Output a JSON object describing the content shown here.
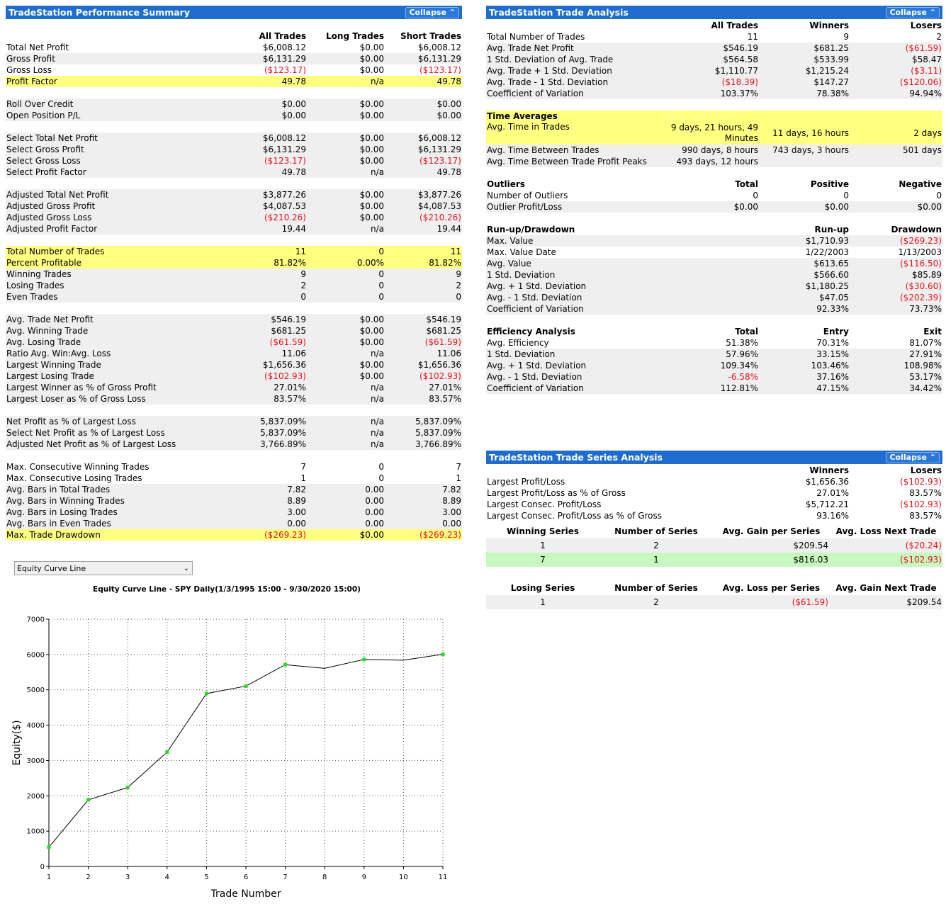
{
  "colors": {
    "title_bar": "#1f6ccf",
    "highlight_yellow": "#ffff80",
    "highlight_green": "#c8f7c0",
    "negative": "#e0141e",
    "alt_row": "#efefef",
    "point": "#22dd22"
  },
  "perf": {
    "title": "TradeStation Performance Summary",
    "collapse": "Collapse ⌃",
    "headers": [
      "",
      "All Trades",
      "Long Trades",
      "Short Trades"
    ],
    "rows": [
      {
        "cells": [
          "Total Net Profit",
          "$6,008.12",
          "$0.00",
          "$6,008.12"
        ]
      },
      {
        "cells": [
          "Gross Profit",
          "$6,131.29",
          "$0.00",
          "$6,131.29"
        ],
        "alt": true
      },
      {
        "cells": [
          "Gross Loss",
          "($123.17)",
          "$0.00",
          "($123.17)"
        ]
      },
      {
        "cells": [
          "Profit Factor",
          "49.78",
          "n/a",
          "49.78"
        ],
        "hl": "yl"
      },
      {
        "gap": true
      },
      {
        "cells": [
          "Roll Over Credit",
          "$0.00",
          "$0.00",
          "$0.00"
        ],
        "alt": true
      },
      {
        "cells": [
          "Open Position P/L",
          "$0.00",
          "$0.00",
          "$0.00"
        ],
        "alt": true
      },
      {
        "gap": true,
        "alt": true
      },
      {
        "cells": [
          "Select Total Net Profit",
          "$6,008.12",
          "$0.00",
          "$6,008.12"
        ],
        "alt": true
      },
      {
        "cells": [
          "Select Gross Profit",
          "$6,131.29",
          "$0.00",
          "$6,131.29"
        ],
        "alt": true
      },
      {
        "cells": [
          "Select Gross Loss",
          "($123.17)",
          "$0.00",
          "($123.17)"
        ],
        "alt": true
      },
      {
        "cells": [
          "Select Profit Factor",
          "49.78",
          "n/a",
          "49.78"
        ],
        "alt": true
      },
      {
        "gap": true,
        "alt": true
      },
      {
        "cells": [
          "Adjusted Total Net Profit",
          "$3,877.26",
          "$0.00",
          "$3,877.26"
        ],
        "alt": true
      },
      {
        "cells": [
          "Adjusted Gross Profit",
          "$4,087.53",
          "$0.00",
          "$4,087.53"
        ],
        "alt": true
      },
      {
        "cells": [
          "Adjusted Gross Loss",
          "($210.26)",
          "$0.00",
          "($210.26)"
        ],
        "alt": true
      },
      {
        "cells": [
          "Adjusted Profit Factor",
          "19.44",
          "n/a",
          "19.44"
        ],
        "alt": true
      },
      {
        "gap": true
      },
      {
        "cells": [
          "Total Number of Trades",
          "11",
          "0",
          "11"
        ],
        "hl": "yl"
      },
      {
        "cells": [
          "Percent Profitable",
          "81.82%",
          "0.00%",
          "81.82%"
        ],
        "hl": "yl"
      },
      {
        "cells": [
          "Winning Trades",
          "9",
          "0",
          "9"
        ],
        "alt": true
      },
      {
        "cells": [
          "Losing Trades",
          "2",
          "0",
          "2"
        ],
        "alt": true
      },
      {
        "cells": [
          "Even Trades",
          "0",
          "0",
          "0"
        ],
        "alt": true
      },
      {
        "gap": true
      },
      {
        "cells": [
          "Avg. Trade Net Profit",
          "$546.19",
          "$0.00",
          "$546.19"
        ],
        "alt": true
      },
      {
        "cells": [
          "Avg. Winning Trade",
          "$681.25",
          "$0.00",
          "$681.25"
        ],
        "alt": true
      },
      {
        "cells": [
          "Avg. Losing Trade",
          "($61.59)",
          "$0.00",
          "($61.59)"
        ],
        "alt": true
      },
      {
        "cells": [
          "Ratio Avg. Win:Avg. Loss",
          "11.06",
          "n/a",
          "11.06"
        ],
        "alt": true
      },
      {
        "cells": [
          "Largest Winning Trade",
          "$1,656.36",
          "$0.00",
          "$1,656.36"
        ],
        "alt": true
      },
      {
        "cells": [
          "Largest Losing Trade",
          "($102.93)",
          "$0.00",
          "($102.93)"
        ],
        "alt": true
      },
      {
        "cells": [
          "Largest Winner as % of Gross Profit",
          "27.01%",
          "n/a",
          "27.01%"
        ],
        "alt": true
      },
      {
        "cells": [
          "Largest Loser as % of Gross Loss",
          "83.57%",
          "n/a",
          "83.57%"
        ],
        "alt": true
      },
      {
        "gap": true
      },
      {
        "cells": [
          "Net Profit as % of Largest Loss",
          "5,837.09%",
          "n/a",
          "5,837.09%"
        ],
        "alt": true
      },
      {
        "cells": [
          "Select Net Profit as % of Largest Loss",
          "5,837.09%",
          "n/a",
          "5,837.09%"
        ],
        "alt": true
      },
      {
        "cells": [
          "Adjusted Net Profit as % of Largest Loss",
          "3,766.89%",
          "n/a",
          "3,766.89%"
        ],
        "alt": true
      },
      {
        "gap": true
      },
      {
        "cells": [
          "Max. Consecutive Winning Trades",
          "7",
          "0",
          "7"
        ]
      },
      {
        "cells": [
          "Max. Consecutive Losing Trades",
          "1",
          "0",
          "1"
        ]
      },
      {
        "cells": [
          "Avg. Bars in Total Trades",
          "7.82",
          "0.00",
          "7.82"
        ],
        "alt": true
      },
      {
        "cells": [
          "Avg. Bars in Winning Trades",
          "8.89",
          "0.00",
          "8.89"
        ],
        "alt": true
      },
      {
        "cells": [
          "Avg. Bars in Losing Trades",
          "3.00",
          "0.00",
          "3.00"
        ],
        "alt": true
      },
      {
        "cells": [
          "Avg. Bars in Even Trades",
          "0.00",
          "0.00",
          "0.00"
        ],
        "alt": true
      },
      {
        "cells": [
          "Max. Trade Drawdown",
          "($269.23)",
          "$0.00",
          "($269.23)"
        ],
        "hl": "yl"
      }
    ]
  },
  "analysis": {
    "title": "TradeStation Trade Analysis",
    "collapse": "Collapse ⌃",
    "rows": [
      {
        "cells": [
          "",
          "All Trades",
          "Winners",
          "Losers"
        ],
        "head": true
      },
      {
        "cells": [
          "Total Number of Trades",
          "11",
          "9",
          "2"
        ]
      },
      {
        "cells": [
          "Avg. Trade Net Profit",
          "$546.19",
          "$681.25",
          "($61.59)"
        ],
        "alt": true
      },
      {
        "cells": [
          "1 Std. Deviation of Avg. Trade",
          "$564.58",
          "$533.99",
          "$58.47"
        ],
        "alt": true
      },
      {
        "cells": [
          "Avg. Trade + 1 Std. Deviation",
          "$1,110.77",
          "$1,215.24",
          "($3.11)"
        ],
        "alt": true
      },
      {
        "cells": [
          "Avg. Trade - 1 Std. Deviation",
          "($18.39)",
          "$147.27",
          "($120.06)"
        ],
        "alt": true
      },
      {
        "cells": [
          "Coefficient of Variation",
          "103.37%",
          "78.38%",
          "94.94%"
        ],
        "alt": true
      },
      {
        "gap": true
      },
      {
        "cells": [
          "Time Averages",
          "",
          "",
          ""
        ],
        "hl": "yl",
        "boldlabel": true
      },
      {
        "cells": [
          "Avg. Time in Trades",
          "9 days, 21 hours, 49 Minutes",
          "11 days, 16 hours",
          "2 days"
        ],
        "hl": "yl",
        "tall": true
      },
      {
        "cells": [
          "Avg. Time Between Trades",
          "990 days, 8 hours",
          "743 days, 3 hours",
          "501 days"
        ],
        "alt": true
      },
      {
        "cells": [
          "Avg. Time Between Trade Profit Peaks",
          "493 days, 12 hours",
          "",
          ""
        ],
        "alt": true
      },
      {
        "gap": true
      },
      {
        "cells": [
          "Outliers",
          "Total",
          "Positive",
          "Negative"
        ],
        "head": true
      },
      {
        "cells": [
          "Number of Outliers",
          "0",
          "0",
          "0"
        ]
      },
      {
        "cells": [
          "Outlier Profit/Loss",
          "$0.00",
          "$0.00",
          "$0.00"
        ],
        "alt": true
      },
      {
        "gap": true
      },
      {
        "cells": [
          "Run-up/Drawdown",
          "",
          "Run-up",
          "Drawdown"
        ],
        "head": true
      },
      {
        "cells": [
          "Max. Value",
          "",
          "$1,710.93",
          "($269.23)"
        ],
        "alt": true
      },
      {
        "cells": [
          "Max. Value Date",
          "",
          "1/22/2003",
          "1/13/2003"
        ]
      },
      {
        "cells": [
          "Avg. Value",
          "",
          "$613.65",
          "($116.50)"
        ],
        "alt": true
      },
      {
        "cells": [
          "1 Std. Deviation",
          "",
          "$566.60",
          "$85.89"
        ],
        "alt": true
      },
      {
        "cells": [
          "Avg. + 1 Std. Deviation",
          "",
          "$1,180.25",
          "($30.60)"
        ],
        "alt": true
      },
      {
        "cells": [
          "Avg. - 1 Std. Deviation",
          "",
          "$47.05",
          "($202.39)"
        ],
        "alt": true
      },
      {
        "cells": [
          "Coefficient of Variation",
          "",
          "92.33%",
          "73.73%"
        ],
        "alt": true
      },
      {
        "gap": true
      },
      {
        "cells": [
          "Efficiency Analysis",
          "Total",
          "Entry",
          "Exit"
        ],
        "head": true
      },
      {
        "cells": [
          "Avg. Efficiency",
          "51.38%",
          "70.31%",
          "81.07%"
        ]
      },
      {
        "cells": [
          "1 Std. Deviation",
          "57.96%",
          "33.15%",
          "27.91%"
        ],
        "alt": true
      },
      {
        "cells": [
          "Avg. + 1 Std. Deviation",
          "109.34%",
          "103.46%",
          "108.98%"
        ],
        "alt": true
      },
      {
        "cells": [
          "Avg. - 1 Std. Deviation",
          "-6.58%",
          "37.16%",
          "53.17%"
        ],
        "alt": true
      },
      {
        "cells": [
          "Coefficient of Variation",
          "112.81%",
          "47.15%",
          "34.42%"
        ],
        "alt": true
      }
    ]
  },
  "series": {
    "title": "TradeStation Trade Series Analysis",
    "collapse": "Collapse ⌃",
    "rows": [
      {
        "cells": [
          "",
          "",
          "Winners",
          "Losers"
        ],
        "head": true
      },
      {
        "cells": [
          "Largest Profit/Loss",
          "",
          "$1,656.36",
          "($102.93)"
        ]
      },
      {
        "cells": [
          "Largest Profit/Loss as % of Gross",
          "",
          "27.01%",
          "83.57%"
        ]
      },
      {
        "cells": [
          "Largest Consec. Profit/Loss",
          "",
          "$5,712.21",
          "($102.93)"
        ]
      },
      {
        "cells": [
          "Largest Consec. Profit/Loss as % of Gross",
          "",
          "93.16%",
          "83.57%"
        ]
      }
    ],
    "win_headers": [
      "Winning Series",
      "Number of Series",
      "Avg. Gain per Series",
      "Avg. Loss Next Trade"
    ],
    "win_rows": [
      {
        "cells": [
          "1",
          "2",
          "$209.54",
          "($20.24)"
        ],
        "alt": true
      },
      {
        "cells": [
          "7",
          "1",
          "$816.03",
          "($102.93)"
        ],
        "hl": "gr"
      }
    ],
    "lose_headers": [
      "Losing Series",
      "Number of Series",
      "Avg. Loss per Series",
      "Avg. Gain Next Trade"
    ],
    "lose_rows": [
      {
        "cells": [
          "1",
          "2",
          "($61.59)",
          "$209.54"
        ],
        "alt": true
      }
    ]
  },
  "chart_selector": {
    "value": "Equity Curve Line"
  },
  "chart_data": {
    "type": "line",
    "title": "Equity Curve Line - SPY Daily(1/3/1995 15:00 - 9/30/2020 15:00)",
    "xlabel": "Trade Number",
    "ylabel": "Equity($)",
    "x": [
      1,
      2,
      3,
      4,
      5,
      6,
      7,
      8,
      9,
      10,
      11
    ],
    "series": [
      {
        "values": [
          546,
          1886,
          2236,
          3238,
          4894,
          5106,
          5712,
          5609,
          5861,
          5839,
          6008
        ]
      }
    ],
    "markers": [
      1,
      2,
      3,
      4,
      5,
      6,
      7,
      9,
      11
    ],
    "xlim": [
      1,
      11
    ],
    "ylim": [
      0,
      7000
    ],
    "yticks": [
      0,
      1000,
      2000,
      3000,
      4000,
      5000,
      6000,
      7000
    ],
    "grid": true
  }
}
